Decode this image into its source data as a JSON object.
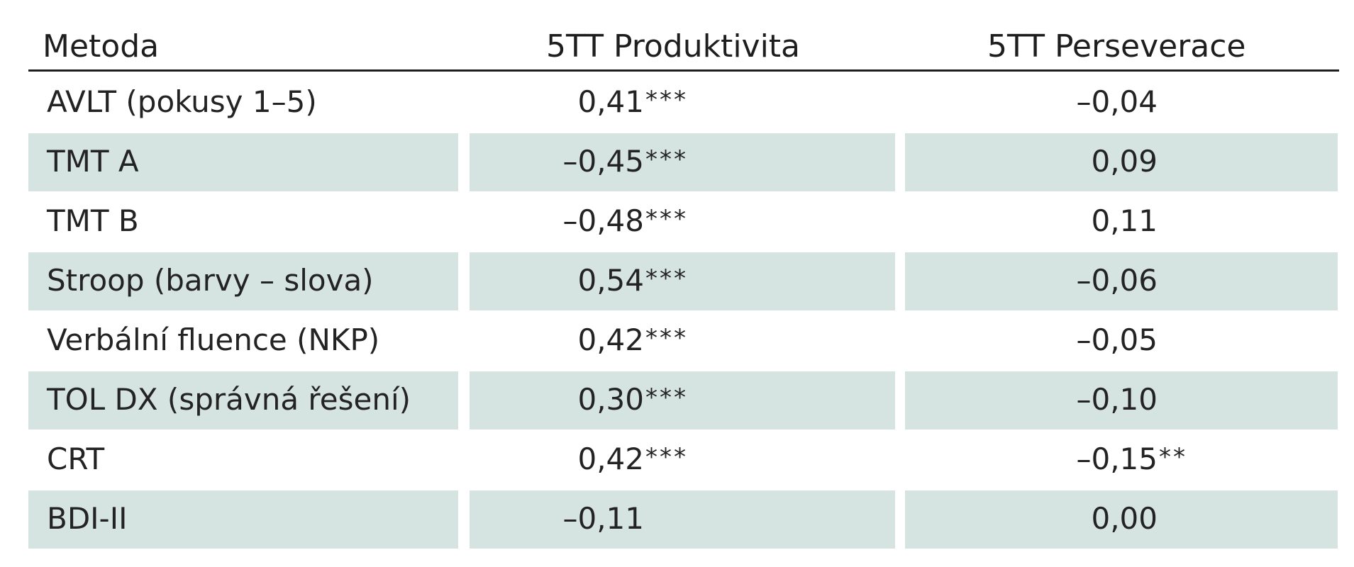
{
  "table": {
    "headers": {
      "method": "Metoda",
      "productivity": "5TT Produktivita",
      "perseveration": "5TT Perseverace"
    },
    "rows": [
      {
        "method": "AVLT (pokusy 1–5)",
        "productivity": "0,41",
        "productivity_sig": "***",
        "perseveration": "–0,04",
        "perseveration_sig": ""
      },
      {
        "method": "TMT A",
        "productivity": "–0,45",
        "productivity_sig": "***",
        "perseveration": "0,09",
        "perseveration_sig": ""
      },
      {
        "method": "TMT B",
        "productivity": "–0,48",
        "productivity_sig": "***",
        "perseveration": "0,11",
        "perseveration_sig": ""
      },
      {
        "method": "Stroop (barvy – slova)",
        "productivity": "0,54",
        "productivity_sig": "***",
        "perseveration": "–0,06",
        "perseveration_sig": ""
      },
      {
        "method": "Verbální fluence (NKP)",
        "productivity": "0,42",
        "productivity_sig": "***",
        "perseveration": "–0,05",
        "perseveration_sig": ""
      },
      {
        "method": "TOL DX (správná řešení)",
        "productivity": "0,30",
        "productivity_sig": "***",
        "perseveration": "–0,10",
        "perseveration_sig": ""
      },
      {
        "method": "CRT",
        "productivity": "0,42",
        "productivity_sig": "***",
        "perseveration": "–0,15",
        "perseveration_sig": "**"
      },
      {
        "method": "BDI-II",
        "productivity": "–0,11",
        "productivity_sig": "",
        "perseveration": "0,00",
        "perseveration_sig": ""
      }
    ]
  },
  "colors": {
    "shaded_row": "#d5e4e0",
    "text": "#1e1e1e",
    "rule": "#1e1e1e"
  }
}
